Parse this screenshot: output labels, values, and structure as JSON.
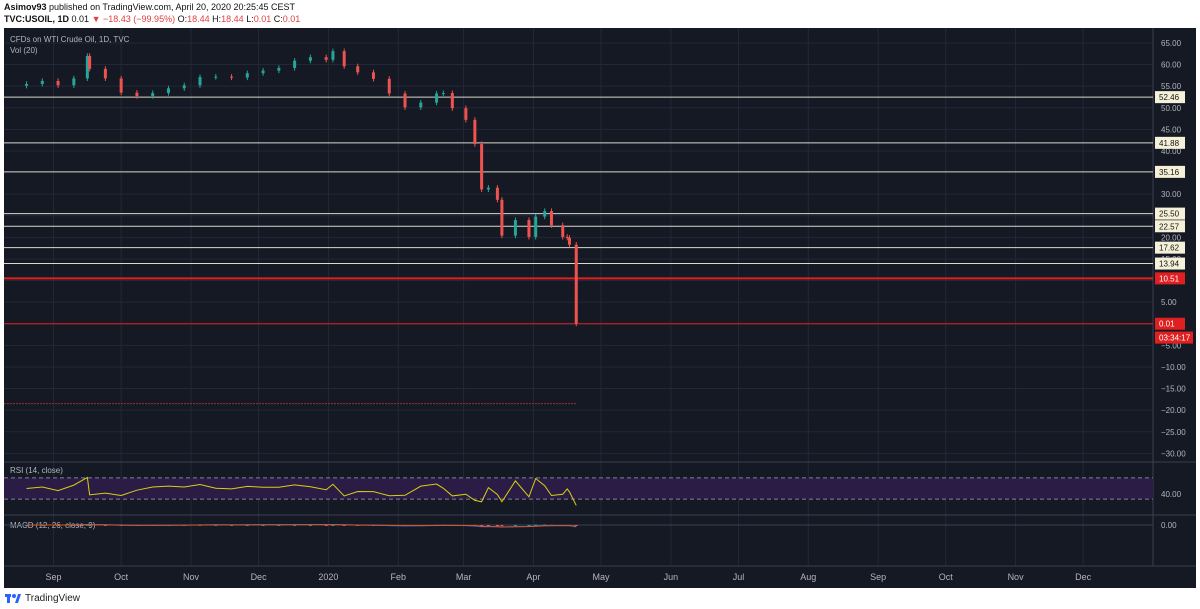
{
  "header": {
    "author": "Asimov93",
    "published": " published on TradingView.com, April 20, 2020 20:25:45 CEST",
    "symbol": "TVC:USOIL, 1D",
    "quote_price": "0.01",
    "quote_change": "−18.43 (−99.95%)",
    "ohlc_o": "O:",
    "ohlc_o_val": "18.44",
    "ohlc_h": "H:",
    "ohlc_h_val": "18.44",
    "ohlc_l": "L:",
    "ohlc_l_val": "0.01",
    "ohlc_c": "C:",
    "ohlc_c_val": "0.01"
  },
  "footer": {
    "brand": "TradingView"
  },
  "colors": {
    "background": "#151924",
    "up": "#26a69a",
    "down": "#ef5350",
    "hline": "#d8d8cc",
    "hline_red": "#e02020",
    "rsi_line": "#d8d010",
    "rsi_band": "#2a1c44",
    "macd_line": "#2962ff",
    "signal_line": "#d85a20",
    "text": "#b2b5be"
  },
  "chart_data": [
    {
      "type": "line",
      "title": "CFDs on WTI Crude Oil, 1D, TVC",
      "subtitle": "Vol (20)",
      "x": [
        "2019-08-20",
        "2019-08-27",
        "2019-09-03",
        "2019-09-10",
        "2019-09-16",
        "2019-09-17",
        "2019-09-24",
        "2019-10-01",
        "2019-10-08",
        "2019-10-15",
        "2019-10-22",
        "2019-10-29",
        "2019-11-05",
        "2019-11-12",
        "2019-11-19",
        "2019-11-26",
        "2019-12-03",
        "2019-12-10",
        "2019-12-17",
        "2019-12-24",
        "2019-12-31",
        "2020-01-03",
        "2020-01-08",
        "2020-01-14",
        "2020-01-21",
        "2020-01-28",
        "2020-02-04",
        "2020-02-11",
        "2020-02-18",
        "2020-02-21",
        "2020-02-25",
        "2020-03-02",
        "2020-03-06",
        "2020-03-09",
        "2020-03-12",
        "2020-03-16",
        "2020-03-18",
        "2020-03-24",
        "2020-03-30",
        "2020-04-02",
        "2020-04-06",
        "2020-04-09",
        "2020-04-14",
        "2020-04-16",
        "2020-04-17",
        "2020-04-20"
      ],
      "close": [
        55.5,
        56.2,
        55.2,
        56.8,
        62.0,
        59.0,
        56.8,
        53.5,
        52.7,
        53.4,
        54.5,
        55.2,
        57.1,
        57.2,
        57.0,
        58.0,
        58.6,
        59.2,
        60.9,
        61.7,
        61.1,
        63.1,
        59.6,
        58.2,
        56.7,
        53.3,
        50.1,
        51.2,
        53.3,
        53.4,
        49.9,
        47.2,
        41.6,
        31.1,
        31.5,
        28.7,
        20.4,
        24.0,
        20.1,
        24.8,
        26.1,
        22.8,
        20.1,
        19.9,
        18.3,
        0.01
      ],
      "xticks": [
        "Sep",
        "Oct",
        "Nov",
        "Dec",
        "2020",
        "Feb",
        "Mar",
        "Apr",
        "May",
        "Jun",
        "Jul",
        "Aug",
        "Sep",
        "Oct",
        "Nov",
        "Dec"
      ],
      "yticks": [
        "65.00",
        "60.00",
        "55.00",
        "50.00",
        "45.00",
        "40.00",
        "30.00",
        "25.00",
        "20.00",
        "15.00",
        "10.00",
        "5.00",
        "0.00",
        "−5.00",
        "−10.00",
        "−15.00",
        "−20.00",
        "−25.00",
        "−30.00"
      ],
      "ylim": [
        -32,
        68
      ],
      "horizontal_levels": [
        52.46,
        41.88,
        35.16,
        25.5,
        22.57,
        17.62,
        13.94
      ],
      "red_levels": [
        10.51,
        0.01
      ],
      "price_labels": [
        "52.46",
        "41.88",
        "35.16",
        "25.50",
        "22.57",
        "17.62",
        "13.94",
        "10.51",
        "0.01",
        "03:34:17"
      ],
      "grid": true
    },
    {
      "type": "line",
      "title": "RSI (14, close)",
      "yticks": [
        "40.00"
      ],
      "ylim": [
        0,
        100
      ],
      "band": [
        30,
        70
      ]
    },
    {
      "type": "line",
      "title": "MACD (12, 26, close, 9)",
      "yticks": [
        "0.00"
      ]
    }
  ]
}
